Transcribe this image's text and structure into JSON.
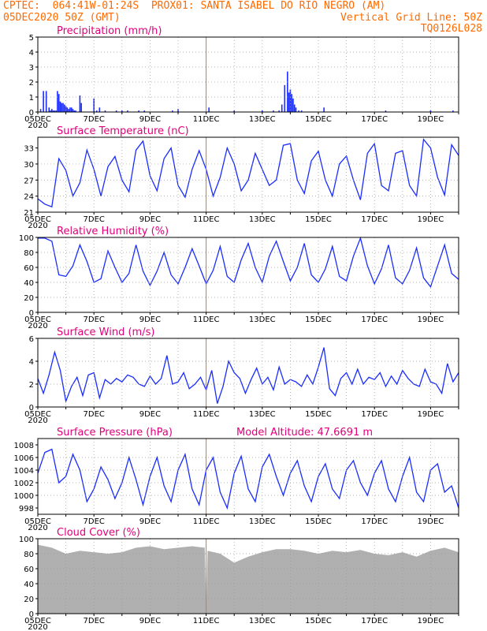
{
  "header": {
    "line1": "CPTEC:  064:41W-01:24S  PROX01: SANTA ISABEL DO RIO NEGRO (AM)",
    "line2": "05DEC2020 50Z (GMT)",
    "grid_line": "Vertical Grid Line: 50Z",
    "code": "TQ0126L028"
  },
  "colors": {
    "header_text": "#ff6a00",
    "title_text": "#e0007a",
    "extra_text": "#e0007a",
    "series": "#1a2cff",
    "bars": "#1a2cff",
    "cloud": "#b0b0b0",
    "vline": "#ff6a00",
    "grid": "#9a9a9a"
  },
  "time_axis": {
    "start_label": "05DEC",
    "sub_label": "2020",
    "tick_labels": [
      "7DEC",
      "9DEC",
      "11DEC",
      "13DEC",
      "15DEC",
      "17DEC",
      "19DEC"
    ]
  },
  "chart_data": [
    {
      "type": "bar",
      "title": "Precipitation (mm/h)",
      "ylim": [
        0,
        5
      ],
      "yticks": [
        "0",
        "1",
        "2",
        "3",
        "4",
        "5"
      ],
      "x": [
        0.1,
        0.2,
        0.3,
        0.4,
        0.45,
        0.5,
        0.55,
        0.6,
        0.65,
        0.7,
        0.75,
        0.8,
        0.85,
        0.9,
        0.95,
        1.0,
        1.05,
        1.1,
        1.15,
        1.2,
        1.25,
        1.3,
        1.35,
        1.5,
        1.55,
        2.0,
        2.1,
        2.2,
        2.4,
        2.8,
        3.0,
        3.2,
        3.6,
        3.8,
        4.8,
        5.0,
        6.1,
        7.0,
        8.0,
        8.4,
        8.6,
        8.7,
        8.8,
        8.9,
        8.95,
        9.0,
        9.05,
        9.1,
        9.15,
        9.2,
        9.3,
        9.4,
        10.2,
        12.4,
        14.0,
        14.8
      ],
      "values": [
        0.2,
        1.4,
        1.4,
        0.3,
        0.1,
        0.2,
        0.1,
        0.1,
        0.1,
        1.4,
        1.2,
        0.7,
        0.6,
        0.6,
        0.5,
        0.4,
        0.3,
        0.2,
        0.3,
        0.3,
        0.2,
        0.1,
        0.1,
        1.1,
        0.6,
        0.9,
        0.1,
        0.3,
        0.1,
        0.1,
        0.1,
        0.1,
        0.1,
        0.1,
        0.1,
        0.2,
        0.3,
        0.1,
        0.1,
        0.1,
        0.1,
        0.5,
        1.8,
        2.7,
        1.3,
        1.5,
        1.2,
        0.9,
        0.5,
        0.3,
        0.1,
        0.1,
        0.3,
        0.1,
        0.1,
        0.1
      ]
    },
    {
      "type": "line",
      "title": "Surface Temperature (nC)",
      "ylim": [
        21,
        35
      ],
      "yticks": [
        "21",
        "24",
        "27",
        "30",
        "33"
      ],
      "x": [
        0,
        0.25,
        0.5,
        0.75,
        1.0,
        1.25,
        1.5,
        1.75,
        2.0,
        2.25,
        2.5,
        2.75,
        3.0,
        3.25,
        3.5,
        3.75,
        4.0,
        4.25,
        4.5,
        4.75,
        5.0,
        5.25,
        5.5,
        5.75,
        6.0,
        6.25,
        6.5,
        6.75,
        7.0,
        7.25,
        7.5,
        7.75,
        8.0,
        8.25,
        8.5,
        8.75,
        9.0,
        9.25,
        9.5,
        9.75,
        10.0,
        10.25,
        10.5,
        10.75,
        11.0,
        11.25,
        11.5,
        11.75,
        12.0,
        12.25,
        12.5,
        12.75,
        13.0,
        13.25,
        13.5,
        13.75,
        14.0,
        14.25,
        14.5,
        14.75,
        15.0
      ],
      "values": [
        23.5,
        22.5,
        22.0,
        31.0,
        28.8,
        24.0,
        26.5,
        32.6,
        29.0,
        24.0,
        29.5,
        31.4,
        27.0,
        24.8,
        32.6,
        34.3,
        27.8,
        25.0,
        31.0,
        33.0,
        26.0,
        23.8,
        29.0,
        32.5,
        29.0,
        24.0,
        27.5,
        33.0,
        30.0,
        25.0,
        27.0,
        32.0,
        29.0,
        26.0,
        27.0,
        33.5,
        33.8,
        27.0,
        24.5,
        30.6,
        32.4,
        27.0,
        24.0,
        30.0,
        31.5,
        27.0,
        23.3,
        32.0,
        33.8,
        26.0,
        25.0,
        32.0,
        32.5,
        26.0,
        24.0,
        34.6,
        33.0,
        27.5,
        24.2,
        33.6,
        31.6
      ]
    },
    {
      "type": "line",
      "title": "Relative Humidity (%)",
      "ylim": [
        0,
        100
      ],
      "yticks": [
        "0",
        "20",
        "40",
        "60",
        "80",
        "100"
      ],
      "x": [
        0,
        0.25,
        0.5,
        0.75,
        1.0,
        1.25,
        1.5,
        1.75,
        2.0,
        2.25,
        2.5,
        2.75,
        3.0,
        3.25,
        3.5,
        3.75,
        4.0,
        4.25,
        4.5,
        4.75,
        5.0,
        5.25,
        5.5,
        5.75,
        6.0,
        6.25,
        6.5,
        6.75,
        7.0,
        7.25,
        7.5,
        7.75,
        8.0,
        8.25,
        8.5,
        8.75,
        9.0,
        9.25,
        9.5,
        9.75,
        10.0,
        10.25,
        10.5,
        10.75,
        11.0,
        11.25,
        11.5,
        11.75,
        12.0,
        12.25,
        12.5,
        12.75,
        13.0,
        13.25,
        13.5,
        13.75,
        14.0,
        14.25,
        14.5,
        14.75,
        15.0
      ],
      "values": [
        99,
        99,
        95,
        50,
        48,
        62,
        90,
        68,
        40,
        45,
        82,
        60,
        40,
        52,
        90,
        55,
        36,
        55,
        80,
        50,
        38,
        60,
        85,
        62,
        38,
        56,
        88,
        48,
        40,
        70,
        92,
        60,
        40,
        75,
        95,
        68,
        42,
        60,
        92,
        50,
        40,
        58,
        88,
        48,
        42,
        75,
        99,
        62,
        38,
        58,
        90,
        46,
        38,
        56,
        86,
        46,
        34,
        62,
        90,
        52,
        44
      ]
    },
    {
      "type": "line",
      "title": "Surface Wind (m/s)",
      "ylim": [
        0,
        6
      ],
      "yticks": [
        "0",
        "2",
        "4",
        "6"
      ],
      "x": [
        0,
        0.2,
        0.4,
        0.6,
        0.8,
        1.0,
        1.2,
        1.4,
        1.6,
        1.8,
        2.0,
        2.2,
        2.4,
        2.6,
        2.8,
        3.0,
        3.2,
        3.4,
        3.6,
        3.8,
        4.0,
        4.2,
        4.4,
        4.6,
        4.8,
        5.0,
        5.2,
        5.4,
        5.6,
        5.8,
        6.0,
        6.2,
        6.4,
        6.6,
        6.8,
        7.0,
        7.2,
        7.4,
        7.6,
        7.8,
        8.0,
        8.2,
        8.4,
        8.6,
        8.8,
        9.0,
        9.2,
        9.4,
        9.6,
        9.8,
        10.0,
        10.2,
        10.4,
        10.6,
        10.8,
        11.0,
        11.2,
        11.4,
        11.6,
        11.8,
        12.0,
        12.2,
        12.4,
        12.6,
        12.8,
        13.0,
        13.2,
        13.4,
        13.6,
        13.8,
        14.0,
        14.2,
        14.4,
        14.6,
        14.8,
        15.0
      ],
      "values": [
        2.5,
        1.2,
        2.8,
        4.8,
        3.2,
        0.5,
        1.8,
        2.6,
        1.0,
        2.8,
        3.0,
        0.8,
        2.4,
        2.0,
        2.5,
        2.2,
        2.8,
        2.6,
        2.0,
        1.8,
        2.7,
        2.0,
        2.5,
        4.5,
        2.0,
        2.2,
        3.0,
        1.6,
        2.0,
        2.6,
        1.5,
        3.2,
        0.3,
        1.8,
        4.0,
        3.0,
        2.5,
        1.2,
        2.4,
        3.4,
        2.0,
        2.6,
        1.5,
        3.5,
        2.0,
        2.4,
        2.2,
        1.8,
        2.8,
        2.0,
        3.5,
        5.2,
        1.6,
        1.0,
        2.5,
        3.0,
        2.0,
        3.3,
        2.0,
        2.6,
        2.4,
        3.0,
        1.8,
        2.7,
        2.0,
        3.2,
        2.5,
        2.0,
        1.8,
        3.3,
        2.2,
        2.0,
        1.2,
        3.8,
        2.2,
        3.0
      ]
    },
    {
      "type": "line",
      "title": "Surface Pressure (hPa)",
      "extra_label": "Model Altitude: 47.6691 m",
      "ylim": [
        997,
        1009
      ],
      "yticks": [
        "998",
        "1000",
        "1002",
        "1004",
        "1006",
        "1008"
      ],
      "x": [
        0,
        0.25,
        0.5,
        0.75,
        1.0,
        1.25,
        1.5,
        1.75,
        2.0,
        2.25,
        2.5,
        2.75,
        3.0,
        3.25,
        3.5,
        3.75,
        4.0,
        4.25,
        4.5,
        4.75,
        5.0,
        5.25,
        5.5,
        5.75,
        6.0,
        6.25,
        6.5,
        6.75,
        7.0,
        7.25,
        7.5,
        7.75,
        8.0,
        8.25,
        8.5,
        8.75,
        9.0,
        9.25,
        9.5,
        9.75,
        10.0,
        10.25,
        10.5,
        10.75,
        11.0,
        11.25,
        11.5,
        11.75,
        12.0,
        12.25,
        12.5,
        12.75,
        13.0,
        13.25,
        13.5,
        13.75,
        14.0,
        14.25,
        14.5,
        14.75,
        15.0
      ],
      "values": [
        1003.5,
        1006.8,
        1007.3,
        1002.0,
        1003.0,
        1006.5,
        1004.0,
        999.0,
        1001.0,
        1004.5,
        1002.5,
        999.5,
        1002.0,
        1006.0,
        1002.5,
        998.5,
        1003.0,
        1006.0,
        1001.5,
        999.0,
        1004.0,
        1006.5,
        1001.0,
        998.5,
        1004.0,
        1006.0,
        1000.5,
        998.0,
        1003.5,
        1006.2,
        1001.0,
        999.0,
        1004.5,
        1006.5,
        1003.0,
        1000.0,
        1003.5,
        1005.5,
        1001.5,
        999.0,
        1003.0,
        1005.0,
        1001.0,
        999.5,
        1004.0,
        1005.5,
        1002.0,
        1000.0,
        1003.5,
        1005.5,
        1001.0,
        999.0,
        1003.0,
        1006.0,
        1000.5,
        999.0,
        1004.0,
        1005.0,
        1000.5,
        1001.5,
        998.0
      ]
    },
    {
      "type": "area",
      "title": "Cloud Cover (%)",
      "ylim": [
        0,
        100
      ],
      "yticks": [
        "0",
        "20",
        "40",
        "60",
        "80",
        "100"
      ],
      "x": [
        0,
        0.5,
        1.0,
        1.5,
        2.0,
        2.5,
        3.0,
        3.5,
        4.0,
        4.5,
        5.0,
        5.5,
        5.95,
        6.0,
        6.05,
        6.5,
        7.0,
        7.5,
        8.0,
        8.5,
        9.0,
        9.5,
        10.0,
        10.5,
        11.0,
        11.5,
        12.0,
        12.5,
        13.0,
        13.5,
        14.0,
        14.5,
        15.0
      ],
      "values": [
        92,
        88,
        80,
        84,
        82,
        80,
        82,
        88,
        90,
        86,
        88,
        90,
        88,
        2,
        84,
        80,
        68,
        76,
        82,
        86,
        86,
        84,
        80,
        84,
        82,
        85,
        80,
        78,
        82,
        76,
        84,
        88,
        82
      ]
    }
  ]
}
